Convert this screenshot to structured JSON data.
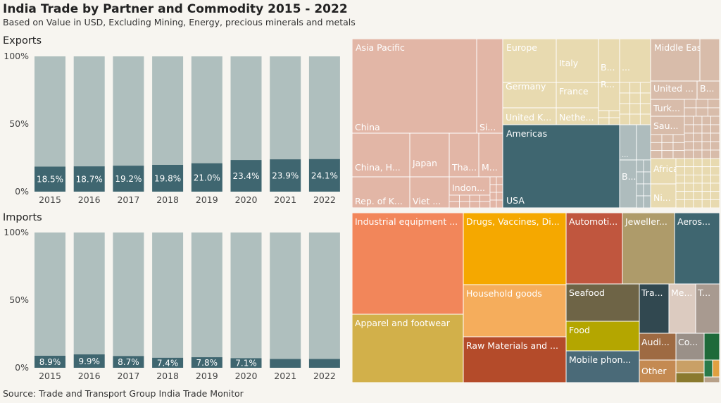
{
  "title": "India Trade by Partner and Commodity 2015 - 2022",
  "subtitle": "Based on Value in USD, Excluding Mining, Energy, precious minerals and metals",
  "source": "Source: Trade and Transport Group India Trade Monitor",
  "chart_data": [
    {
      "type": "bar",
      "title": "Exports",
      "categories": [
        "2015",
        "2016",
        "2017",
        "2018",
        "2019",
        "2020",
        "2021",
        "2022"
      ],
      "values": [
        18.5,
        18.7,
        19.2,
        19.8,
        21.0,
        23.4,
        23.9,
        24.1
      ],
      "value_labels": [
        "18.5%",
        "18.7%",
        "19.2%",
        "19.8%",
        "21.0%",
        "23.4%",
        "23.9%",
        "24.1%"
      ],
      "yticks": [
        "100%",
        "50%",
        "0%"
      ],
      "ylim": [
        0,
        100
      ],
      "colors": {
        "share": "#3f6670",
        "rest": "#afbfbe"
      }
    },
    {
      "type": "bar",
      "title": "Imports",
      "categories": [
        "2015",
        "2016",
        "2017",
        "2018",
        "2019",
        "2020",
        "2021",
        "2022"
      ],
      "values": [
        8.9,
        9.9,
        8.7,
        7.4,
        7.8,
        7.1,
        6.5,
        6.5
      ],
      "value_labels": [
        "8.9%",
        "9.9%",
        "8.7%",
        "7.4%",
        "7.8%",
        "7.1%",
        "",
        ""
      ],
      "yticks": [
        "100%",
        "50%",
        "0%"
      ],
      "ylim": [
        0,
        100
      ],
      "colors": {
        "share": "#3f6670",
        "rest": "#afbfbe"
      }
    },
    {
      "type": "treemap",
      "name": "partners",
      "regions": [
        {
          "name": "Asia Pacific",
          "value": 30.1,
          "color": "#e2b6a6",
          "children": [
            "China",
            "Si...",
            "China, H...",
            "Japan",
            "Tha...",
            "M...",
            "Rep. of K...",
            "Viet ...",
            "Indon..."
          ]
        },
        {
          "name": "Europe",
          "value": 12.7,
          "color": "#e8dab0",
          "children": [
            "Italy",
            "B...",
            "...",
            "Germany",
            "France",
            "R...",
            "United K...",
            "Nethe..."
          ]
        },
        {
          "name": "Middle East...",
          "value": 11.0,
          "color": "#d8bcaa",
          "children": [
            "United ...",
            "B...",
            "Turk...",
            "Sau..."
          ]
        },
        {
          "name": "Americas",
          "value": 19.6,
          "color": "#3f6670",
          "children": [
            "USA",
            "B...",
            "..."
          ]
        },
        {
          "name": "Africa",
          "value": 6.0,
          "color": "#e8dab0",
          "children": [
            "Ni..."
          ]
        }
      ]
    },
    {
      "type": "treemap",
      "name": "commodities",
      "items": [
        {
          "name": "Industrial equipment ...",
          "value": 14.5,
          "color": "#f2865a"
        },
        {
          "name": "Apparel and footwear",
          "value": 8.8,
          "color": "#d2b04a"
        },
        {
          "name": "Drugs, Vaccines, Di...",
          "value": 10.3,
          "color": "#f5a800"
        },
        {
          "name": "Household goods",
          "value": 7.2,
          "color": "#f5ad5c"
        },
        {
          "name": "Raw Materials and ...",
          "value": 5.8,
          "color": "#b44b2a"
        },
        {
          "name": "Automoti...",
          "value": 5.3,
          "color": "#c0563e"
        },
        {
          "name": "Jeweller...",
          "value": 5.3,
          "color": "#ae9b6a"
        },
        {
          "name": "Aeros...",
          "value": 4.4,
          "color": "#3f6670"
        },
        {
          "name": "Seafood",
          "value": 3.5,
          "color": "#6e6446"
        },
        {
          "name": "Food",
          "value": 2.8,
          "color": "#b4a600"
        },
        {
          "name": "Mobile phon...",
          "value": 2.9,
          "color": "#4a6a78"
        },
        {
          "name": "Tra...",
          "value": 2.0,
          "color": "#314850"
        },
        {
          "name": "Me...",
          "value": 1.8,
          "color": "#dccbc0"
        },
        {
          "name": "T...",
          "value": 1.8,
          "color": "#a89a90"
        },
        {
          "name": "Audi...",
          "value": 1.0,
          "color": "#9e6a42"
        },
        {
          "name": "Other",
          "value": 0.9,
          "color": "#c48a52"
        },
        {
          "name": "Co...",
          "value": 0.9,
          "color": "#9a9088"
        }
      ]
    }
  ]
}
